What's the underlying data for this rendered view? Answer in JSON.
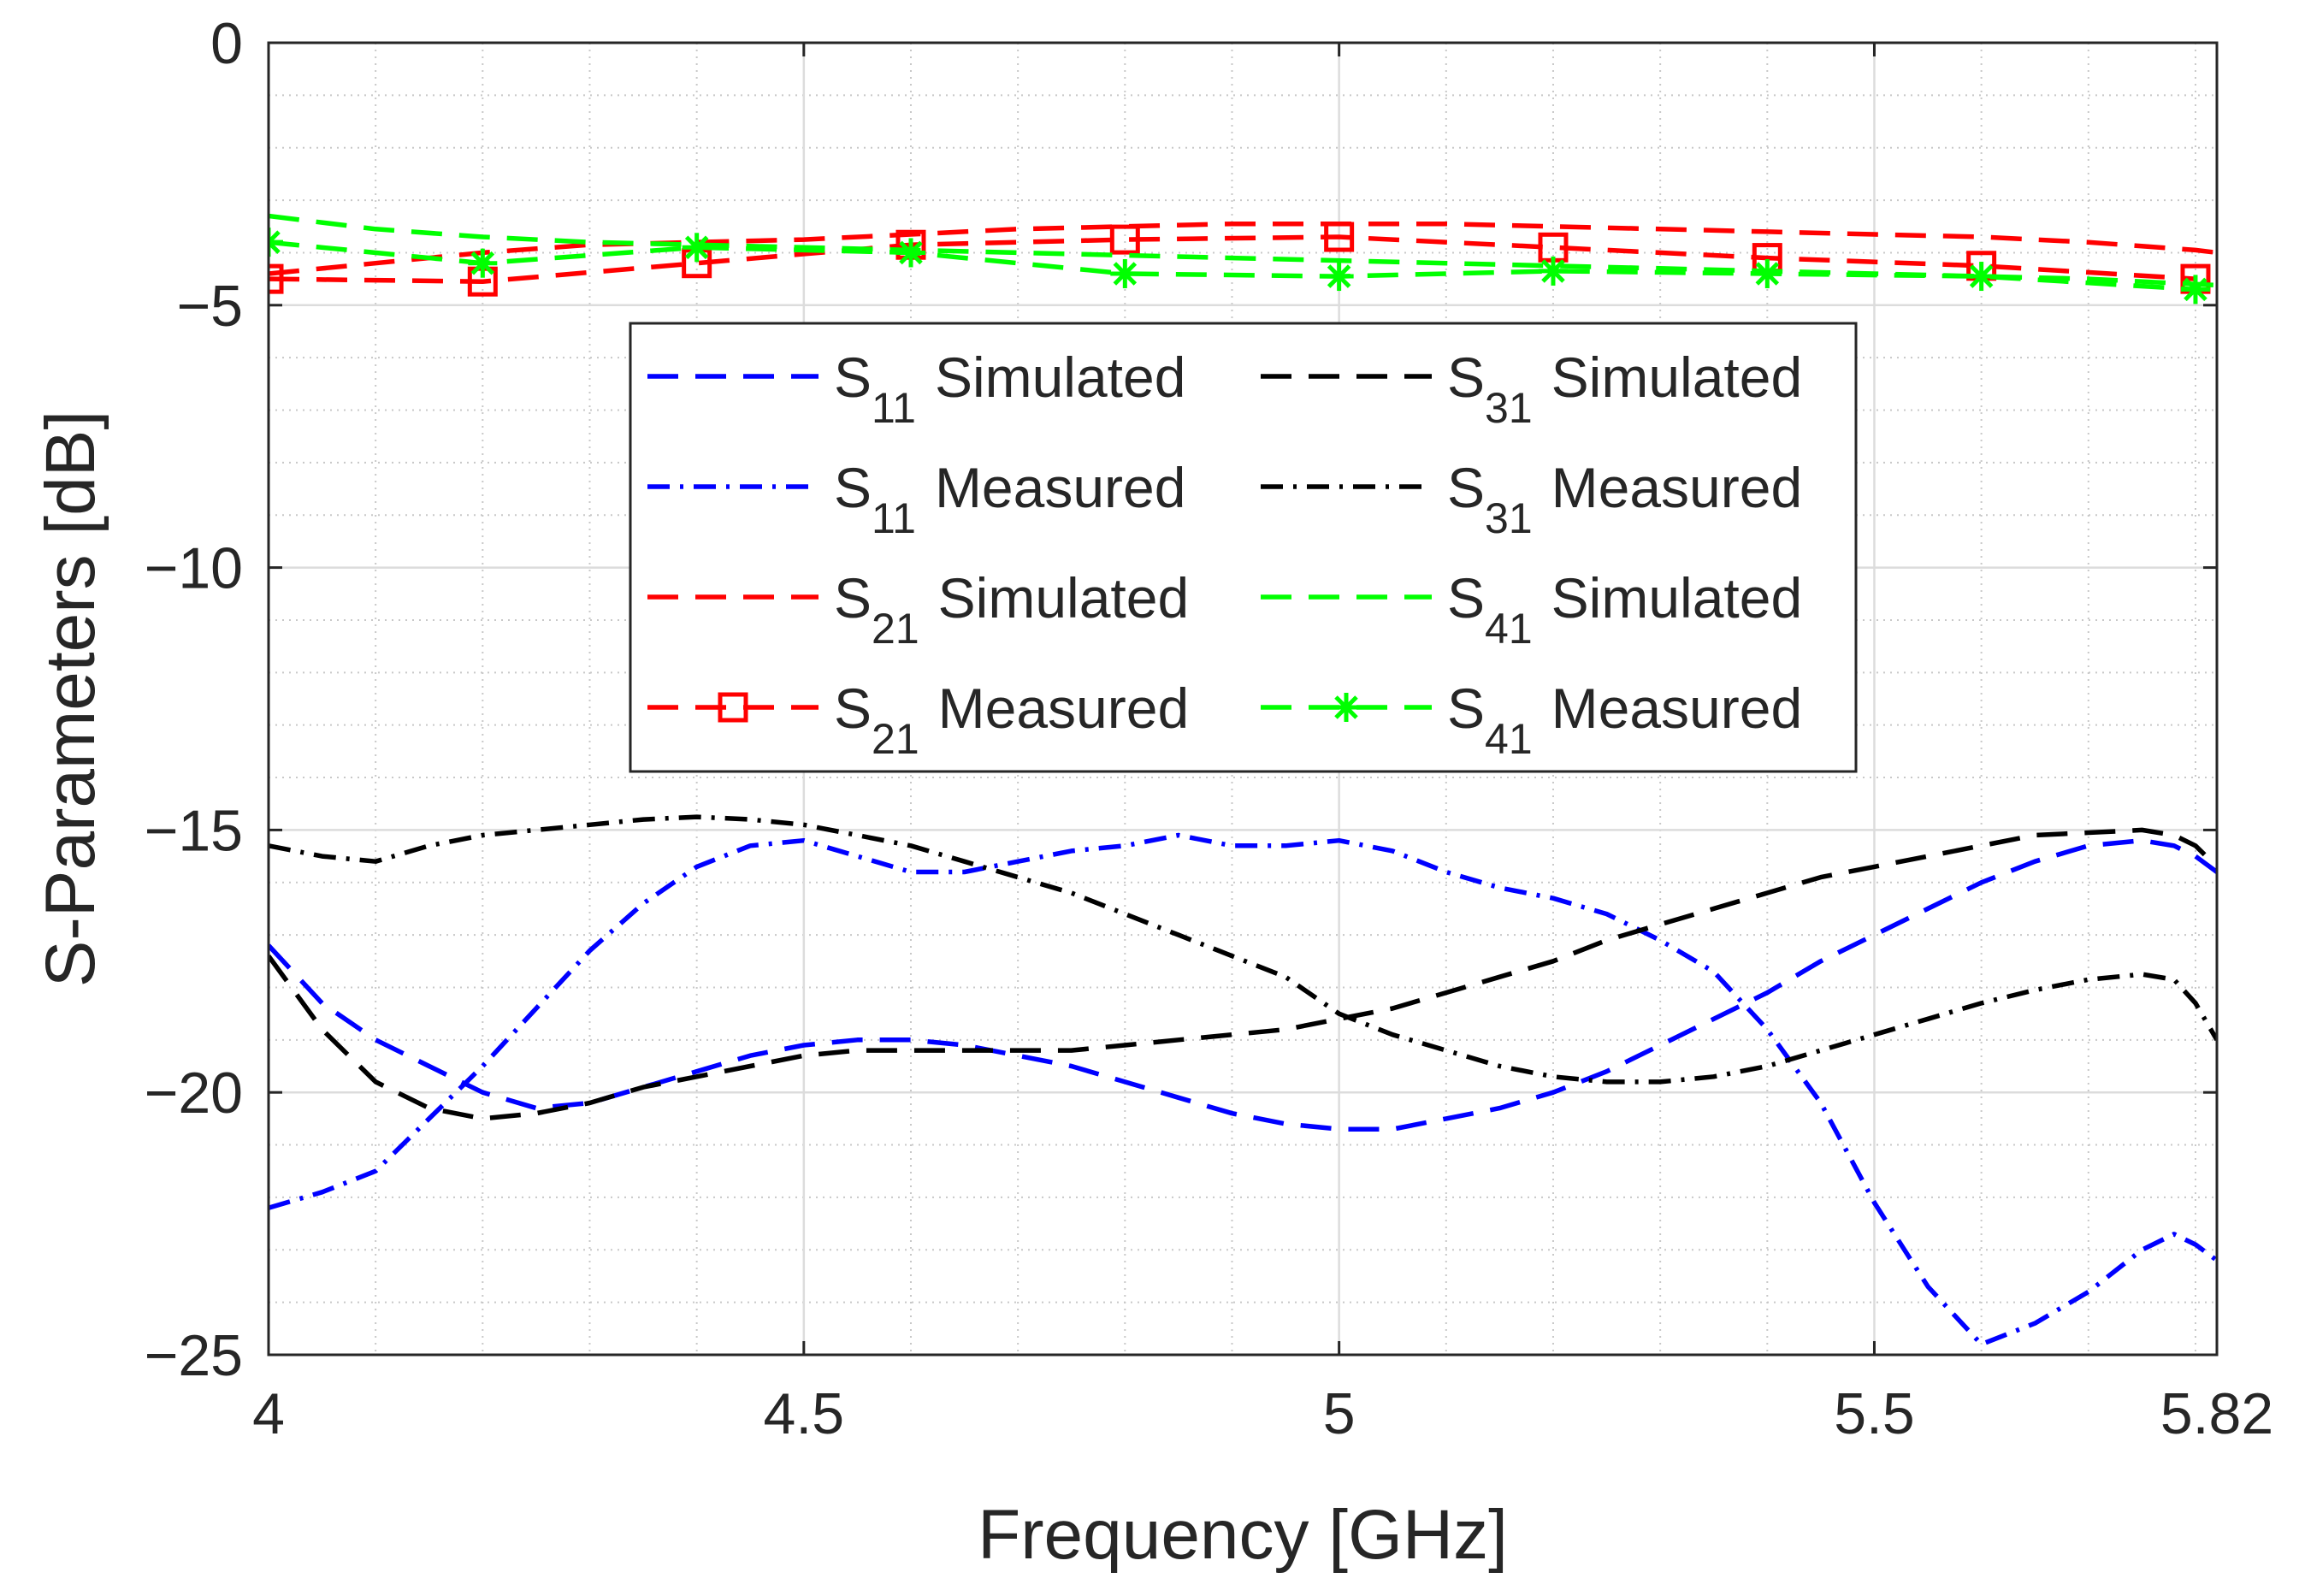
{
  "chart_data": {
    "type": "line",
    "xlabel": "Frequency [GHz]",
    "ylabel": "S-Parameters [dB]",
    "xlim": [
      4,
      5.82
    ],
    "ylim": [
      -25,
      0
    ],
    "grid": true,
    "minor_grid": true,
    "x_ticks": [
      4,
      4.5,
      5,
      5.5,
      5.82
    ],
    "x_tick_labels": [
      "4",
      "4.5",
      "5",
      "5.5",
      "5.82"
    ],
    "y_ticks": [
      0,
      -5,
      -10,
      -15,
      -20,
      -25
    ],
    "y_tick_labels": [
      "0",
      "−5",
      "−10",
      "−15",
      "−20",
      "−25"
    ],
    "legend_position": "upper-center, two columns",
    "series": [
      {
        "name": "S11 Simulated",
        "label_main": "S",
        "label_sub": "11",
        "label_rest": "Simulated",
        "color": "#0000ff",
        "style": "dashed",
        "marker": "none",
        "x": [
          4.0,
          4.05,
          4.1,
          4.15,
          4.2,
          4.25,
          4.3,
          4.35,
          4.4,
          4.45,
          4.5,
          4.55,
          4.6,
          4.65,
          4.7,
          4.75,
          4.8,
          4.85,
          4.9,
          4.95,
          5.0,
          5.05,
          5.1,
          5.15,
          5.2,
          5.25,
          5.3,
          5.35,
          5.4,
          5.45,
          5.5,
          5.55,
          5.6,
          5.65,
          5.7,
          5.75,
          5.78,
          5.8,
          5.82
        ],
        "y": [
          -17.2,
          -18.3,
          -19.0,
          -19.5,
          -20.0,
          -20.3,
          -20.2,
          -19.9,
          -19.6,
          -19.3,
          -19.1,
          -19.0,
          -19.0,
          -19.1,
          -19.3,
          -19.5,
          -19.8,
          -20.1,
          -20.4,
          -20.6,
          -20.7,
          -20.7,
          -20.5,
          -20.3,
          -20.0,
          -19.6,
          -19.1,
          -18.6,
          -18.1,
          -17.5,
          -17.0,
          -16.5,
          -16.0,
          -15.6,
          -15.3,
          -15.2,
          -15.3,
          -15.5,
          -15.8
        ]
      },
      {
        "name": "S11 Measured",
        "label_main": "S",
        "label_sub": "11",
        "label_rest": "Measured",
        "color": "#0000ff",
        "style": "dashdot",
        "marker": "none",
        "x": [
          4.0,
          4.05,
          4.1,
          4.15,
          4.2,
          4.25,
          4.3,
          4.35,
          4.4,
          4.45,
          4.5,
          4.55,
          4.6,
          4.65,
          4.7,
          4.75,
          4.8,
          4.85,
          4.9,
          4.95,
          5.0,
          5.05,
          5.1,
          5.15,
          5.2,
          5.25,
          5.3,
          5.35,
          5.4,
          5.45,
          5.5,
          5.55,
          5.6,
          5.65,
          5.7,
          5.75,
          5.78,
          5.8,
          5.82
        ],
        "y": [
          -22.2,
          -21.9,
          -21.5,
          -20.5,
          -19.5,
          -18.4,
          -17.3,
          -16.4,
          -15.7,
          -15.3,
          -15.2,
          -15.5,
          -15.8,
          -15.8,
          -15.6,
          -15.4,
          -15.3,
          -15.1,
          -15.3,
          -15.3,
          -15.2,
          -15.4,
          -15.8,
          -16.1,
          -16.3,
          -16.6,
          -17.1,
          -17.7,
          -18.8,
          -20.2,
          -22.1,
          -23.7,
          -24.8,
          -24.4,
          -23.8,
          -23.0,
          -22.7,
          -22.9,
          -23.2
        ]
      },
      {
        "name": "S21 Simulated",
        "label_main": "S",
        "label_sub": "21",
        "label_rest": "Simulated",
        "color": "#ff0000",
        "style": "dashed",
        "marker": "none",
        "x": [
          4.0,
          4.1,
          4.2,
          4.3,
          4.4,
          4.5,
          4.6,
          4.7,
          4.8,
          4.9,
          5.0,
          5.1,
          5.2,
          5.3,
          5.4,
          5.5,
          5.6,
          5.7,
          5.8,
          5.82
        ],
        "y": [
          -4.4,
          -4.2,
          -4.0,
          -3.85,
          -3.8,
          -3.75,
          -3.65,
          -3.55,
          -3.5,
          -3.45,
          -3.45,
          -3.45,
          -3.5,
          -3.55,
          -3.6,
          -3.65,
          -3.7,
          -3.8,
          -3.95,
          -4.0
        ]
      },
      {
        "name": "S21 Measured",
        "label_main": "S",
        "label_sub": "21",
        "label_rest": "Measured",
        "color": "#ff0000",
        "style": "dashed",
        "marker": "square",
        "x": [
          4.0,
          4.2,
          4.4,
          4.6,
          4.8,
          5.0,
          5.2,
          5.4,
          5.6,
          5.8
        ],
        "y": [
          -4.5,
          -4.55,
          -4.2,
          -3.85,
          -3.75,
          -3.7,
          -3.9,
          -4.1,
          -4.25,
          -4.5
        ]
      },
      {
        "name": "S31 Simulated",
        "label_main": "S",
        "label_sub": "31",
        "label_rest": "Simulated",
        "color": "#000000",
        "style": "dashed",
        "marker": "none",
        "x": [
          4.0,
          4.05,
          4.1,
          4.15,
          4.2,
          4.25,
          4.3,
          4.35,
          4.4,
          4.45,
          4.5,
          4.55,
          4.6,
          4.65,
          4.7,
          4.75,
          4.8,
          4.85,
          4.9,
          4.95,
          5.0,
          5.05,
          5.1,
          5.15,
          5.2,
          5.25,
          5.3,
          5.35,
          5.4,
          5.45,
          5.5,
          5.55,
          5.6,
          5.65,
          5.7,
          5.75,
          5.78,
          5.8,
          5.82
        ],
        "y": [
          -17.4,
          -18.8,
          -19.8,
          -20.3,
          -20.5,
          -20.4,
          -20.2,
          -19.9,
          -19.7,
          -19.5,
          -19.3,
          -19.2,
          -19.2,
          -19.2,
          -19.2,
          -19.2,
          -19.1,
          -19.0,
          -18.9,
          -18.8,
          -18.6,
          -18.4,
          -18.1,
          -17.8,
          -17.5,
          -17.1,
          -16.8,
          -16.5,
          -16.2,
          -15.9,
          -15.7,
          -15.5,
          -15.3,
          -15.1,
          -15.05,
          -15.0,
          -15.1,
          -15.3,
          -15.7
        ]
      },
      {
        "name": "S31 Measured",
        "label_main": "S",
        "label_sub": "31",
        "label_rest": "Measured",
        "color": "#000000",
        "style": "dashdot",
        "marker": "none",
        "x": [
          4.0,
          4.05,
          4.1,
          4.15,
          4.2,
          4.25,
          4.3,
          4.35,
          4.4,
          4.45,
          4.5,
          4.55,
          4.6,
          4.65,
          4.7,
          4.75,
          4.8,
          4.85,
          4.9,
          4.95,
          5.0,
          5.05,
          5.1,
          5.15,
          5.2,
          5.25,
          5.3,
          5.35,
          5.4,
          5.45,
          5.5,
          5.55,
          5.6,
          5.65,
          5.7,
          5.75,
          5.78,
          5.8,
          5.82
        ],
        "y": [
          -15.3,
          -15.5,
          -15.6,
          -15.3,
          -15.1,
          -15.0,
          -14.9,
          -14.8,
          -14.75,
          -14.8,
          -14.9,
          -15.1,
          -15.3,
          -15.6,
          -15.9,
          -16.2,
          -16.6,
          -17.0,
          -17.4,
          -17.8,
          -18.5,
          -18.9,
          -19.2,
          -19.5,
          -19.7,
          -19.8,
          -19.8,
          -19.7,
          -19.5,
          -19.2,
          -18.9,
          -18.6,
          -18.3,
          -18.05,
          -17.85,
          -17.75,
          -17.85,
          -18.3,
          -19.0
        ]
      },
      {
        "name": "S41 Simulated",
        "label_main": "S",
        "label_sub": "41",
        "label_rest": "Simulated",
        "color": "#00ff00",
        "style": "dashed",
        "marker": "none",
        "x": [
          4.0,
          4.1,
          4.2,
          4.3,
          4.4,
          4.5,
          4.6,
          4.7,
          4.8,
          4.9,
          5.0,
          5.1,
          5.2,
          5.3,
          5.4,
          5.5,
          5.6,
          5.7,
          5.8,
          5.82
        ],
        "y": [
          -3.3,
          -3.55,
          -3.7,
          -3.8,
          -3.85,
          -3.9,
          -3.95,
          -4.0,
          -4.05,
          -4.1,
          -4.15,
          -4.2,
          -4.25,
          -4.3,
          -4.35,
          -4.4,
          -4.45,
          -4.5,
          -4.6,
          -4.62
        ]
      },
      {
        "name": "S41 Measured",
        "label_main": "S",
        "label_sub": "41",
        "label_rest": "Measured",
        "color": "#00ff00",
        "style": "dashed",
        "marker": "asterisk",
        "x": [
          4.0,
          4.2,
          4.4,
          4.6,
          4.8,
          5.0,
          5.2,
          5.4,
          5.6,
          5.8
        ],
        "y": [
          -3.8,
          -4.2,
          -3.9,
          -4.0,
          -4.4,
          -4.45,
          -4.35,
          -4.4,
          -4.45,
          -4.7
        ]
      }
    ]
  }
}
